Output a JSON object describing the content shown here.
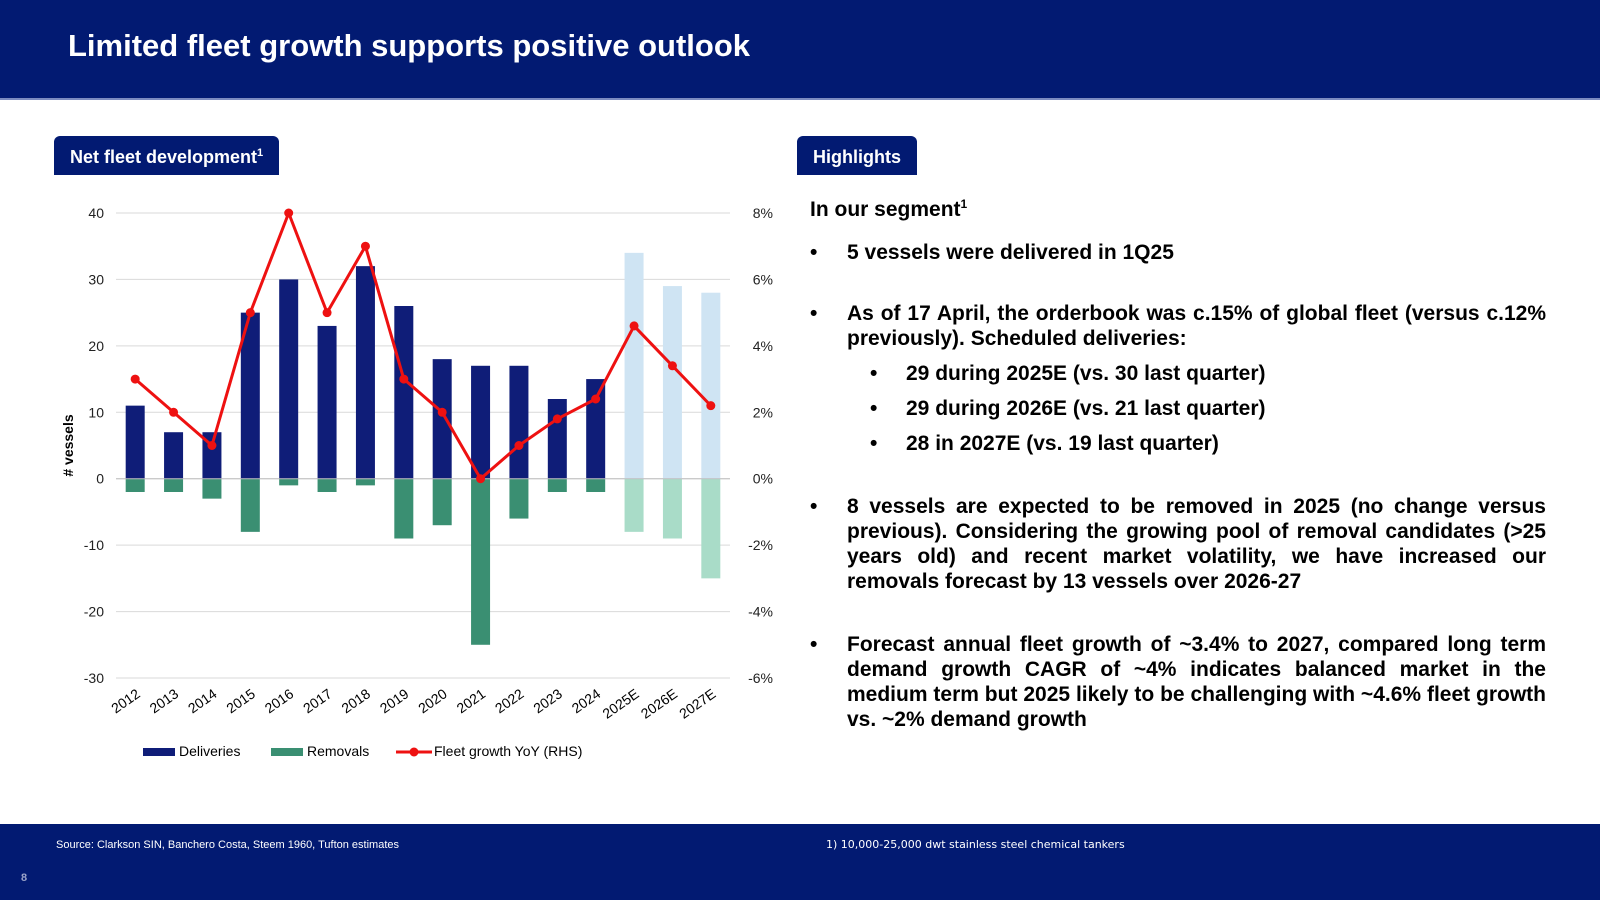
{
  "header": {
    "title": "Limited fleet growth supports positive outlook"
  },
  "chart_panel": {
    "tag": "Net fleet development",
    "tag_sup": "1"
  },
  "highlights_panel": {
    "tag": "Highlights",
    "segment_title": "In our segment",
    "segment_sup": "1",
    "bullet_char": "•",
    "bullets": [
      "5 vessels were delivered in 1Q25",
      "As of 17 April, the orderbook was c.15% of global fleet (versus c.12% previously). Scheduled deliveries:",
      "8 vessels are expected to be removed in 2025 (no change versus previous). Considering the growing pool of removal candidates (>25 years old) and recent market volatility, we have increased our removals forecast by 13 vessels over 2026-27",
      "Forecast annual fleet growth of ~3.4% to 2027, compared long term demand growth CAGR of ~4% indicates balanced market in the medium term but 2025 likely to be challenging with ~4.6% fleet growth vs. ~2% demand growth"
    ],
    "sub_bullets": [
      "29 during 2025E (vs. 30 last quarter)",
      "29 during 2026E (vs. 21 last quarter)",
      "28 in 2027E (vs. 19 last quarter)"
    ]
  },
  "chart_data": {
    "type": "bar",
    "categories": [
      "2012",
      "2013",
      "2014",
      "2015",
      "2016",
      "2017",
      "2018",
      "2019",
      "2020",
      "2021",
      "2022",
      "2023",
      "2024",
      "2025E",
      "2026E",
      "2027E"
    ],
    "series": [
      {
        "name": "Deliveries",
        "values": [
          11,
          7,
          7,
          25,
          30,
          23,
          32,
          26,
          18,
          17,
          17,
          12,
          15,
          34,
          29,
          28
        ],
        "color": "#0f1d78",
        "forecast_color": "#cfe4f3"
      },
      {
        "name": "Removals",
        "values": [
          -2,
          -2,
          -3,
          -8,
          -1,
          -2,
          -1,
          -9,
          -7,
          -25,
          -6,
          -2,
          -2,
          -8,
          -9,
          -15
        ],
        "color": "#3a8f72",
        "forecast_color": "#a9dcc8"
      },
      {
        "name": "Fleet growth YoY (RHS)",
        "type": "line",
        "axis": "right",
        "values": [
          3,
          2,
          1,
          5,
          8,
          5,
          7,
          3,
          2,
          0,
          1,
          1.8,
          2.4,
          4.6,
          3.4,
          2.2
        ],
        "color": "#ee1111"
      }
    ],
    "forecast_from_index": 13,
    "ylabel": "# vessels",
    "ylim": [
      -30,
      40
    ],
    "yticks": [
      40,
      30,
      20,
      10,
      0,
      -10,
      -20,
      -30
    ],
    "y2lim": [
      -6,
      8
    ],
    "y2ticks": [
      "8%",
      "6%",
      "4%",
      "2%",
      "0%",
      "-2%",
      "-4%",
      "-6%"
    ],
    "y2tick_values": [
      8,
      6,
      4,
      2,
      0,
      -2,
      -4,
      -6
    ],
    "grid": true,
    "legend_position": "bottom"
  },
  "footer": {
    "source": "Source: Clarkson SIN, Banchero Costa, Steem 1960, Tufton estimates",
    "note": "1) 10,000-25,000 dwt stainless steel chemical tankers",
    "page_number": "8"
  }
}
